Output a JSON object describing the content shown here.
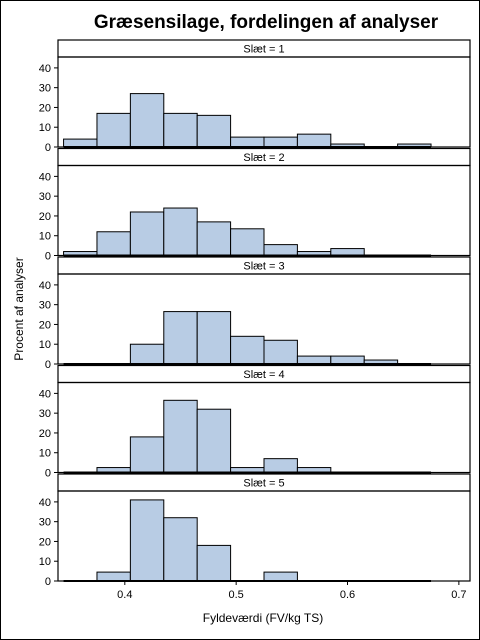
{
  "chart_data": {
    "type": "bar",
    "title": "Græsensilage, fordelingen af analyser",
    "xlabel": "Fyldeværdi (FV/kg TS)",
    "ylabel": "Procent af analyser",
    "xlim": [
      0.34,
      0.71
    ],
    "ylim": [
      0,
      45
    ],
    "x_ticks": [
      "0.4",
      "0.5",
      "0.6",
      "0.7"
    ],
    "y_ticks": [
      "0",
      "10",
      "20",
      "30",
      "40"
    ],
    "bin_width": 0.03,
    "bin_edges": [
      0.345,
      0.375,
      0.405,
      0.435,
      0.465,
      0.495,
      0.525,
      0.555,
      0.585,
      0.615,
      0.645,
      0.675
    ],
    "colors": {
      "bar_fill": "#b8cce4",
      "bar_edge": "#000000"
    },
    "panels": [
      {
        "label": "Slæt = 1",
        "values": [
          4,
          17,
          27,
          17,
          16,
          5,
          5,
          6.5,
          1.5,
          0,
          1.5
        ]
      },
      {
        "label": "Slæt = 2",
        "values": [
          2,
          12,
          22,
          24,
          17,
          13.5,
          5.5,
          2,
          3.5,
          0,
          0
        ]
      },
      {
        "label": "Slæt = 3",
        "values": [
          0,
          0,
          10,
          26.5,
          26.5,
          14,
          12,
          4,
          4,
          2,
          0
        ]
      },
      {
        "label": "Slæt = 4",
        "values": [
          0,
          2.5,
          18,
          36.5,
          32,
          2.5,
          7,
          2.5,
          0,
          0,
          0
        ]
      },
      {
        "label": "Slæt = 5",
        "values": [
          0,
          4.5,
          41,
          32,
          18,
          0,
          4.5,
          0,
          0,
          0,
          0
        ]
      }
    ]
  }
}
